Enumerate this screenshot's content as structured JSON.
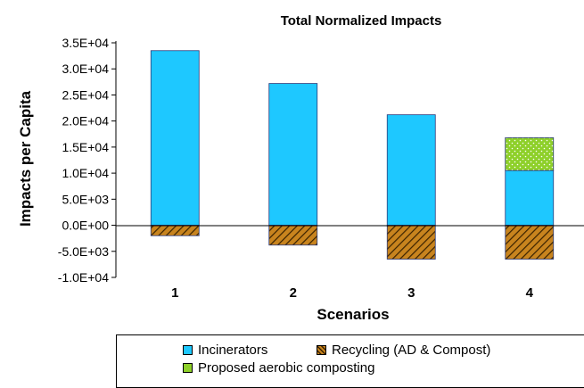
{
  "chart_data": {
    "type": "bar",
    "stacked": true,
    "title": "Total Normalized Impacts",
    "xlabel": "Scenarios",
    "ylabel": "Impacts per Capita",
    "categories": [
      "1",
      "2",
      "3",
      "4"
    ],
    "ylim": [
      -10000,
      35000
    ],
    "yticks": [
      35000,
      30000,
      25000,
      20000,
      15000,
      10000,
      5000,
      0,
      -5000,
      -10000
    ],
    "ytick_labels": [
      "3.5E+04",
      "3.0E+04",
      "2.5E+04",
      "2.0E+04",
      "1.5E+04",
      "1.0E+04",
      "5.0E+03",
      "0.0E+00",
      "-5.0E+03",
      "-1.0E+04"
    ],
    "grid": false,
    "legend_position": "bottom",
    "series": [
      {
        "name": "Incinerators",
        "color": "#1ec8ff",
        "pattern": "solid",
        "values": [
          33500,
          27200,
          21200,
          10500
        ]
      },
      {
        "name": "Recycling (AD & Compost)",
        "color": "#c8841e",
        "pattern": "hatch",
        "values": [
          -2000,
          -3800,
          -6500,
          -6500
        ]
      },
      {
        "name": "Proposed aerobic composting",
        "color": "#8ed02a",
        "pattern": "dots",
        "values": [
          0,
          0,
          0,
          6300
        ]
      }
    ]
  }
}
